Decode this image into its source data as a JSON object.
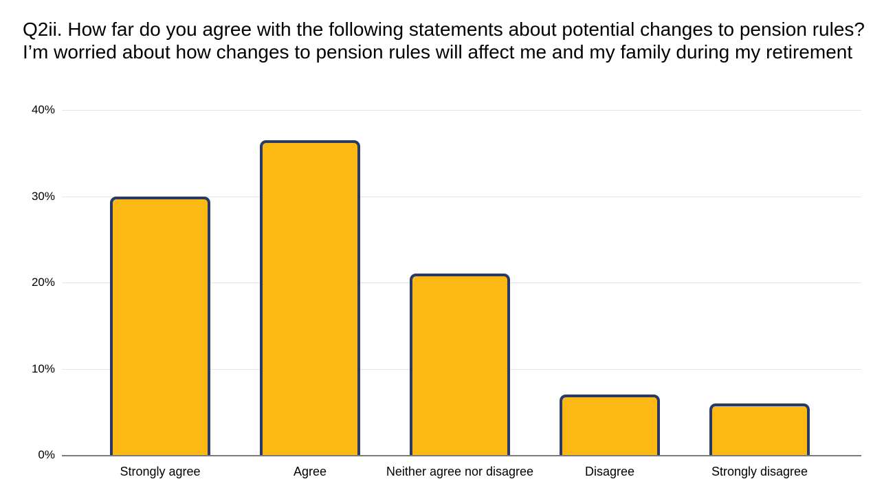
{
  "chart_data": {
    "type": "bar",
    "title": "Q2ii. How far do you agree with the following statements about potential changes to pension rules? I’m worried about how changes to pension rules will affect me and my family during my retirement",
    "categories": [
      "Strongly agree",
      "Agree",
      "Neither agree nor disagree",
      "Disagree",
      "Strongly disagree"
    ],
    "values": [
      30,
      36.5,
      21,
      7,
      6
    ],
    "xlabel": "",
    "ylabel": "",
    "ylim": [
      0,
      40
    ],
    "yticks": [
      0,
      10,
      20,
      30,
      40
    ],
    "ytick_labels": [
      "0%",
      "10%",
      "20%",
      "30%",
      "40%"
    ],
    "grid": true,
    "legend": false,
    "colors": {
      "bar_fill": "#fdb913",
      "bar_border": "#2b3a64",
      "gridline": "#e3e3e3",
      "axis_line": "#7a7a7a",
      "text": "#000000",
      "background": "#ffffff"
    }
  }
}
